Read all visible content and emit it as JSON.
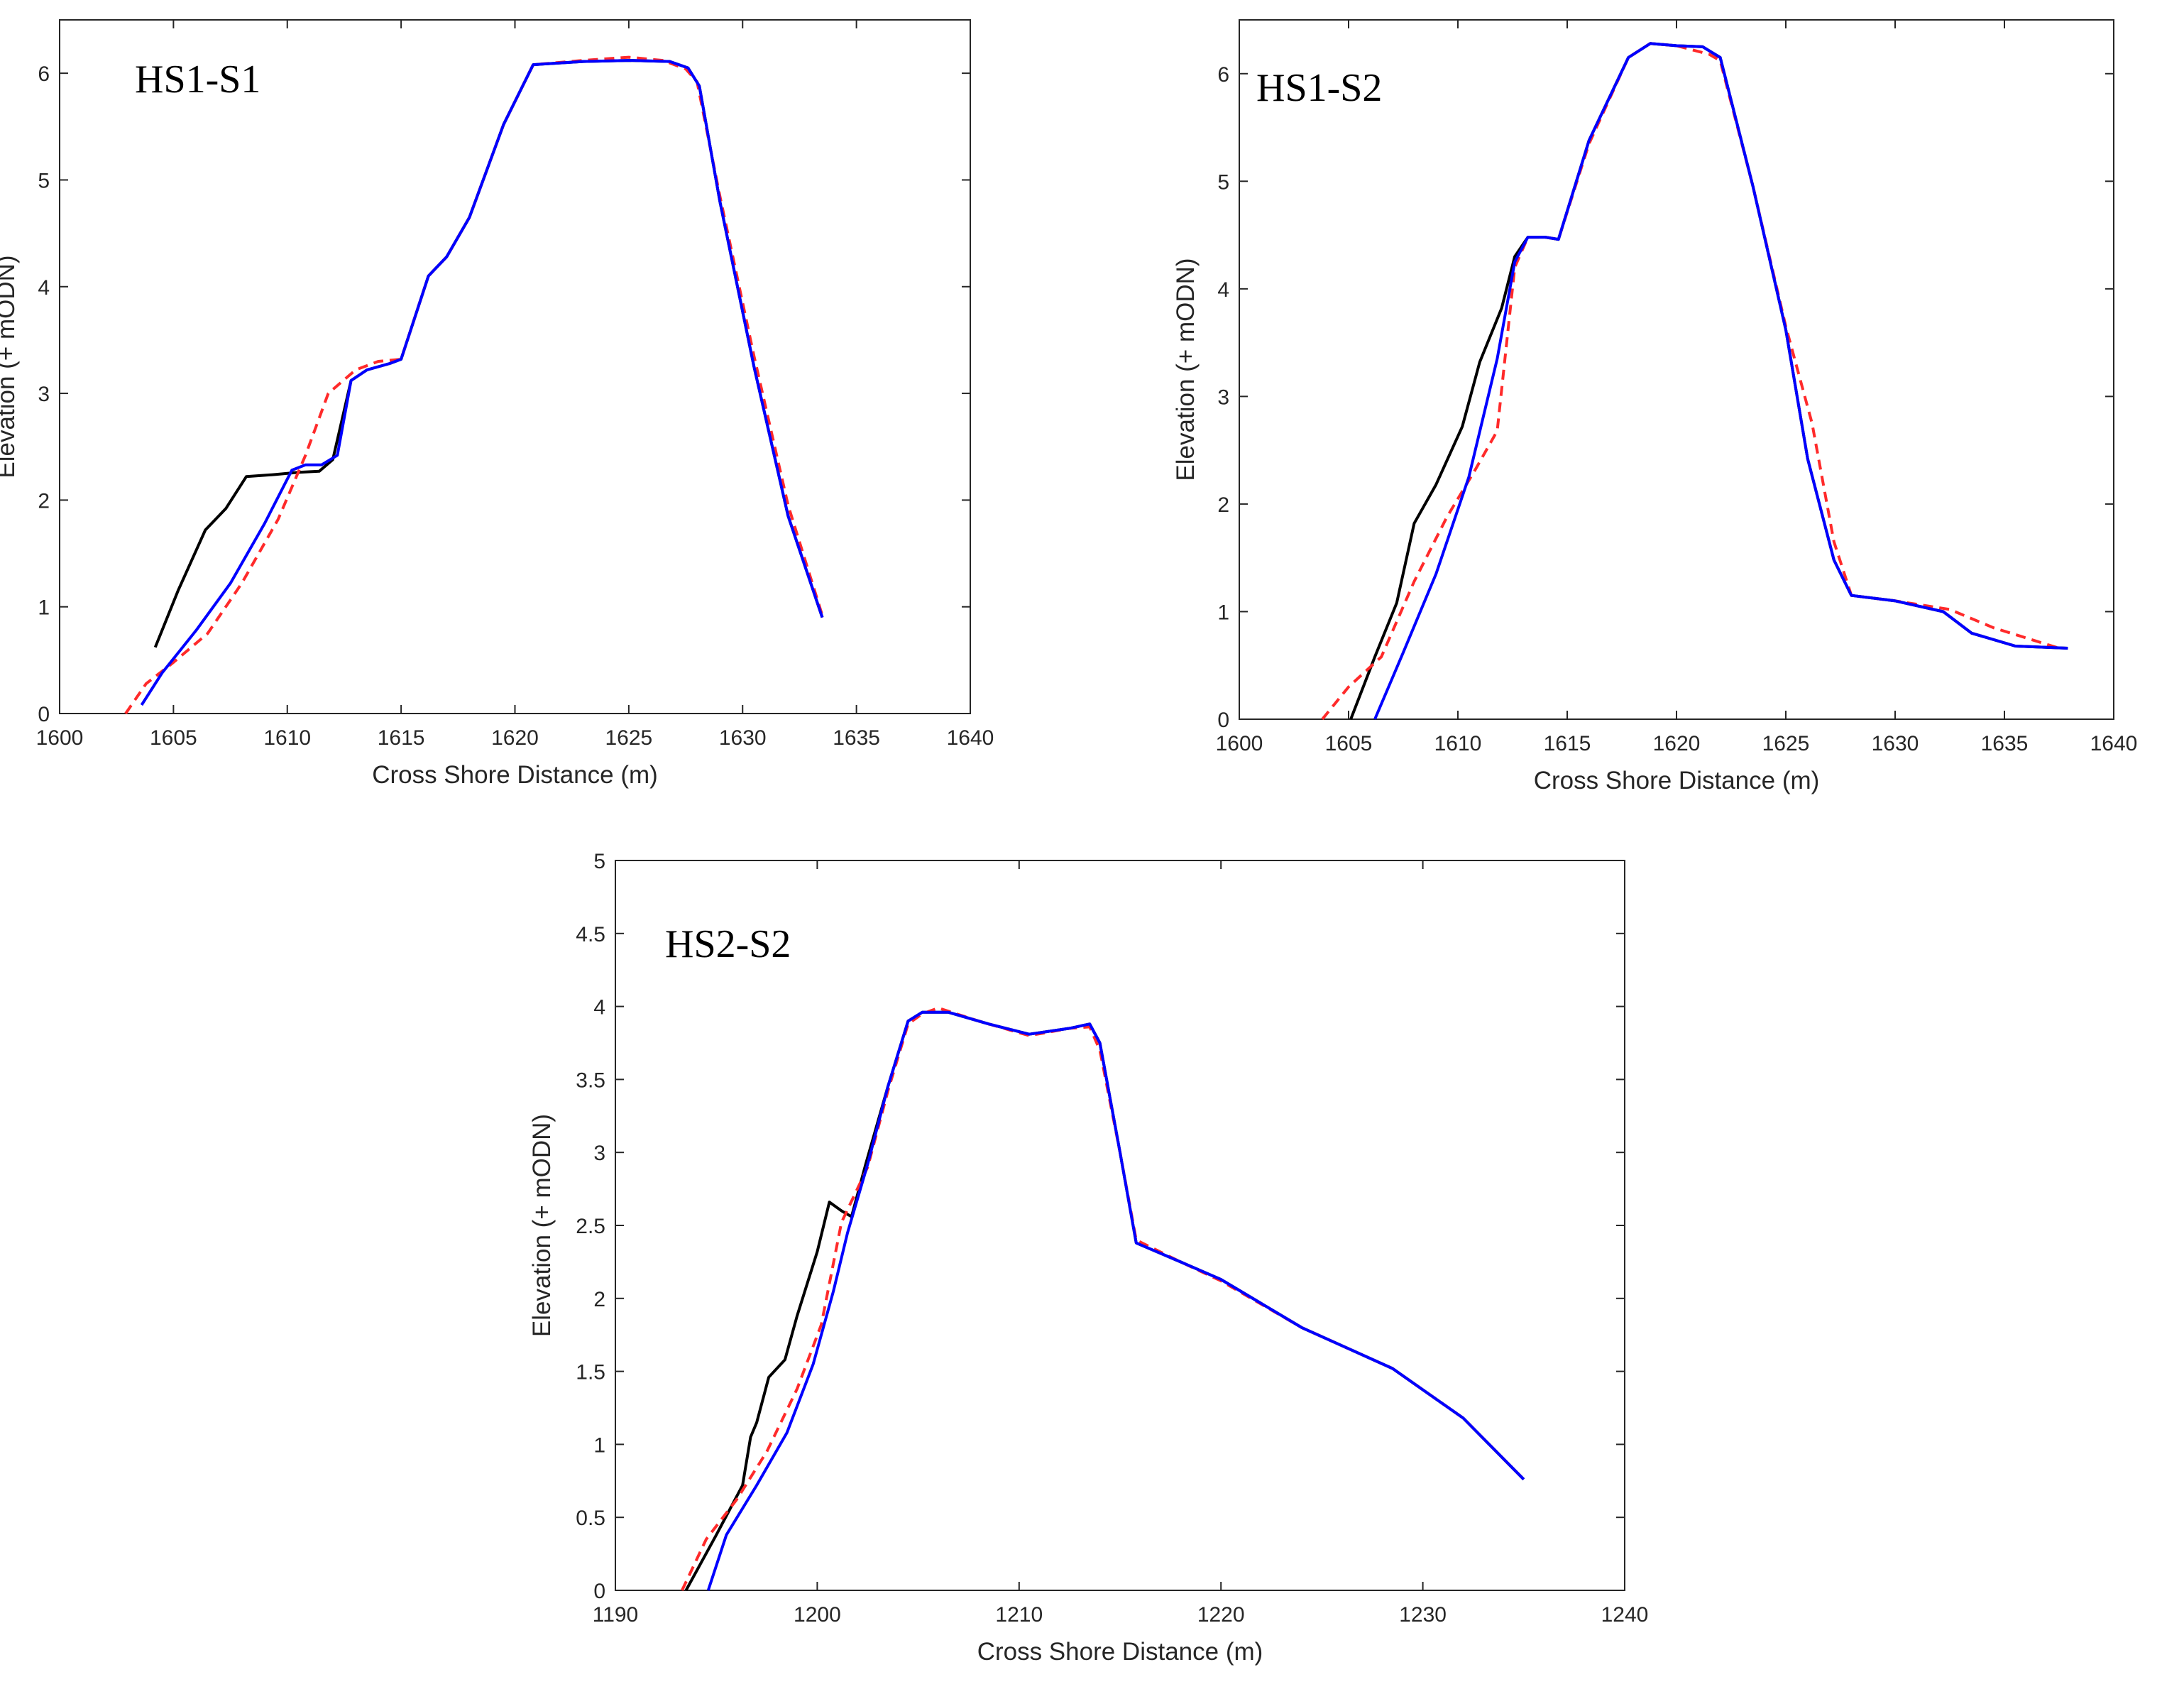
{
  "figure": {
    "colors": {
      "background": "#ffffff",
      "axes": "#262626"
    }
  },
  "chart_data": [
    {
      "type": "line",
      "title": "HS1-S1",
      "xlabel": "Cross Shore Distance (m)",
      "ylabel": "Elevation (+ mODN)",
      "xlim": [
        1600,
        1640
      ],
      "ylim": [
        0,
        6.5
      ],
      "xticks": [
        "1600",
        "1605",
        "1610",
        "1615",
        "1620",
        "1625",
        "1630",
        "1635",
        "1640"
      ],
      "yticks": [
        "0",
        "1",
        "2",
        "3",
        "4",
        "5",
        "6"
      ],
      "series": [
        {
          "name": "black-profile",
          "color": "#000000",
          "dash": "solid",
          "x": [
            1604.2,
            1605.2,
            1606.4,
            1607.3,
            1608.2,
            1609.5,
            1610.5,
            1611.4,
            1612.0,
            1612.8,
            1613.5,
            1614.5,
            1615.0,
            1616.2,
            1617.0,
            1618.0,
            1619.5,
            1620.8,
            1623.0,
            1625.0,
            1626.8,
            1627.6,
            1628.1,
            1629.0,
            1630.5,
            1632.0,
            1633.5
          ],
          "y": [
            0.62,
            1.15,
            1.72,
            1.92,
            2.22,
            2.24,
            2.26,
            2.27,
            2.38,
            3.12,
            3.22,
            3.28,
            3.32,
            4.1,
            4.28,
            4.65,
            5.52,
            6.08,
            6.11,
            6.12,
            6.11,
            6.05,
            5.88,
            4.8,
            3.25,
            1.85,
            0.9
          ]
        },
        {
          "name": "red-dashed-profile",
          "color": "#ff2a2a",
          "dash": "dashed",
          "x": [
            1602.9,
            1603.8,
            1605.0,
            1606.5,
            1608.0,
            1609.6,
            1610.8,
            1611.8,
            1613.0,
            1614.0,
            1615.0,
            1616.2,
            1617.0,
            1618.0,
            1619.5,
            1620.8,
            1623.0,
            1625.0,
            1626.5,
            1627.5,
            1628.0,
            1629.0,
            1630.5,
            1632.0,
            1633.5
          ],
          "y": [
            0.0,
            0.28,
            0.48,
            0.75,
            1.22,
            1.82,
            2.42,
            3.0,
            3.22,
            3.3,
            3.32,
            4.1,
            4.28,
            4.65,
            5.52,
            6.08,
            6.12,
            6.15,
            6.12,
            6.04,
            5.92,
            4.85,
            3.35,
            1.95,
            0.92
          ]
        },
        {
          "name": "blue-profile",
          "color": "#0000ff",
          "dash": "solid",
          "x": [
            1603.6,
            1604.5,
            1606.0,
            1607.5,
            1609.0,
            1610.2,
            1610.8,
            1611.5,
            1612.2,
            1612.8,
            1613.5,
            1614.5,
            1615.0,
            1616.2,
            1617.0,
            1618.0,
            1619.5,
            1620.8,
            1623.0,
            1625.0,
            1626.8,
            1627.6,
            1628.1,
            1629.0,
            1630.5,
            1632.0,
            1633.5
          ],
          "y": [
            0.08,
            0.38,
            0.78,
            1.22,
            1.78,
            2.28,
            2.33,
            2.33,
            2.42,
            3.12,
            3.22,
            3.28,
            3.32,
            4.1,
            4.28,
            4.65,
            5.52,
            6.08,
            6.11,
            6.12,
            6.11,
            6.05,
            5.88,
            4.8,
            3.25,
            1.85,
            0.9
          ]
        }
      ]
    },
    {
      "type": "line",
      "title": "HS1-S2",
      "xlabel": "Cross Shore Distance (m)",
      "ylabel": "Elevation (+ mODN)",
      "xlim": [
        1600,
        1640
      ],
      "ylim": [
        0,
        6.5
      ],
      "xticks": [
        "1600",
        "1605",
        "1610",
        "1615",
        "1620",
        "1625",
        "1630",
        "1635",
        "1640"
      ],
      "yticks": [
        "0",
        "1",
        "2",
        "3",
        "4",
        "5",
        "6"
      ],
      "series": [
        {
          "name": "black-profile",
          "color": "#000000",
          "dash": "solid",
          "x": [
            1605.1,
            1606.2,
            1607.2,
            1608.0,
            1609.0,
            1610.2,
            1611.0,
            1612.0,
            1612.6,
            1613.2,
            1614.0,
            1614.6,
            1616.0,
            1617.8,
            1618.8,
            1620.0,
            1621.2,
            1622.0,
            1623.5,
            1625.0,
            1626.0,
            1627.2,
            1628.0,
            1630.0,
            1632.2,
            1633.5,
            1635.5,
            1637.9
          ],
          "y": [
            0.0,
            0.58,
            1.08,
            1.82,
            2.18,
            2.72,
            3.32,
            3.82,
            4.3,
            4.48,
            4.48,
            4.46,
            5.38,
            6.15,
            6.28,
            6.26,
            6.25,
            6.15,
            4.95,
            3.62,
            2.42,
            1.48,
            1.15,
            1.1,
            1.0,
            0.8,
            0.68,
            0.66
          ]
        },
        {
          "name": "red-dashed-profile",
          "color": "#ff2a2a",
          "dash": "dashed",
          "x": [
            1603.8,
            1605.0,
            1606.5,
            1608.0,
            1609.5,
            1610.8,
            1611.8,
            1612.6,
            1613.2,
            1614.0,
            1614.6,
            1616.0,
            1617.8,
            1618.8,
            1620.0,
            1621.5,
            1622.0,
            1623.5,
            1625.0,
            1626.2,
            1627.2,
            1628.0,
            1630.0,
            1632.5,
            1634.5,
            1637.5
          ],
          "y": [
            0.0,
            0.3,
            0.58,
            1.28,
            1.88,
            2.32,
            2.68,
            4.2,
            4.48,
            4.48,
            4.46,
            5.35,
            6.15,
            6.28,
            6.26,
            6.18,
            6.12,
            4.95,
            3.65,
            2.75,
            1.65,
            1.15,
            1.1,
            1.02,
            0.85,
            0.66
          ]
        },
        {
          "name": "blue-profile",
          "color": "#0000ff",
          "dash": "solid",
          "x": [
            1606.2,
            1607.5,
            1609.0,
            1610.5,
            1611.8,
            1612.6,
            1613.2,
            1614.0,
            1614.6,
            1616.0,
            1617.8,
            1618.8,
            1620.0,
            1621.2,
            1622.0,
            1623.5,
            1625.0,
            1626.0,
            1627.2,
            1628.0,
            1630.0,
            1632.2,
            1633.5,
            1635.5,
            1637.9
          ],
          "y": [
            0.0,
            0.62,
            1.35,
            2.25,
            3.35,
            4.25,
            4.48,
            4.48,
            4.46,
            5.38,
            6.15,
            6.28,
            6.26,
            6.25,
            6.15,
            4.95,
            3.62,
            2.42,
            1.48,
            1.15,
            1.1,
            1.0,
            0.8,
            0.68,
            0.66
          ]
        }
      ]
    },
    {
      "type": "line",
      "title": "HS2-S2",
      "xlabel": "Cross Shore Distance (m)",
      "ylabel": "Elevation (+ mODN)",
      "xlim": [
        1190,
        1240
      ],
      "ylim": [
        0,
        5
      ],
      "xticks": [
        "1190",
        "1200",
        "1210",
        "1220",
        "1230",
        "1240"
      ],
      "yticks": [
        "0",
        "0.5",
        "1",
        "1.5",
        "2",
        "2.5",
        "3",
        "3.5",
        "4",
        "4.5",
        "5"
      ],
      "series": [
        {
          "name": "black-profile",
          "color": "#000000",
          "dash": "solid",
          "x": [
            1193.5,
            1195.0,
            1196.3,
            1196.7,
            1197.0,
            1197.6,
            1198.4,
            1199.0,
            1200.0,
            1200.6,
            1201.2,
            1201.7,
            1202.4,
            1203.5,
            1204.5,
            1205.2,
            1206.5,
            1208.5,
            1210.5,
            1212.5,
            1213.5,
            1214.0,
            1215.0,
            1215.8,
            1218.0,
            1220.0,
            1224.0,
            1228.5,
            1232.0,
            1235.0
          ],
          "y": [
            0.0,
            0.38,
            0.72,
            1.05,
            1.15,
            1.46,
            1.58,
            1.88,
            2.32,
            2.66,
            2.6,
            2.56,
            2.92,
            3.45,
            3.9,
            3.96,
            3.96,
            3.88,
            3.81,
            3.85,
            3.88,
            3.75,
            3.0,
            2.38,
            2.25,
            2.13,
            1.8,
            1.52,
            1.18,
            0.76
          ]
        },
        {
          "name": "red-dashed-profile",
          "color": "#ff2a2a",
          "dash": "dashed",
          "x": [
            1193.3,
            1194.5,
            1196.0,
            1197.5,
            1199.0,
            1200.2,
            1201.2,
            1202.5,
            1203.5,
            1204.5,
            1205.2,
            1206.0,
            1208.0,
            1210.5,
            1212.5,
            1213.5,
            1214.0,
            1215.0,
            1215.8,
            1218.0,
            1220.0,
            1224.0,
            1228.5,
            1232.0,
            1235.0
          ],
          "y": [
            0.0,
            0.35,
            0.62,
            0.95,
            1.38,
            1.82,
            2.52,
            2.9,
            3.42,
            3.88,
            3.95,
            3.99,
            3.9,
            3.8,
            3.85,
            3.86,
            3.7,
            3.0,
            2.4,
            2.25,
            2.12,
            1.8,
            1.52,
            1.18,
            0.76
          ]
        },
        {
          "name": "blue-profile",
          "color": "#0000ff",
          "dash": "solid",
          "x": [
            1194.6,
            1195.5,
            1197.0,
            1198.5,
            1199.8,
            1200.8,
            1201.5,
            1202.5,
            1203.5,
            1204.5,
            1205.2,
            1206.5,
            1208.5,
            1210.5,
            1212.5,
            1213.5,
            1214.0,
            1215.0,
            1215.8,
            1218.0,
            1220.0,
            1224.0,
            1228.5,
            1232.0,
            1235.0
          ],
          "y": [
            0.0,
            0.38,
            0.72,
            1.08,
            1.55,
            2.05,
            2.45,
            2.92,
            3.45,
            3.9,
            3.96,
            3.96,
            3.88,
            3.81,
            3.85,
            3.88,
            3.75,
            3.0,
            2.38,
            2.25,
            2.13,
            1.8,
            1.52,
            1.18,
            0.76
          ]
        }
      ]
    }
  ]
}
